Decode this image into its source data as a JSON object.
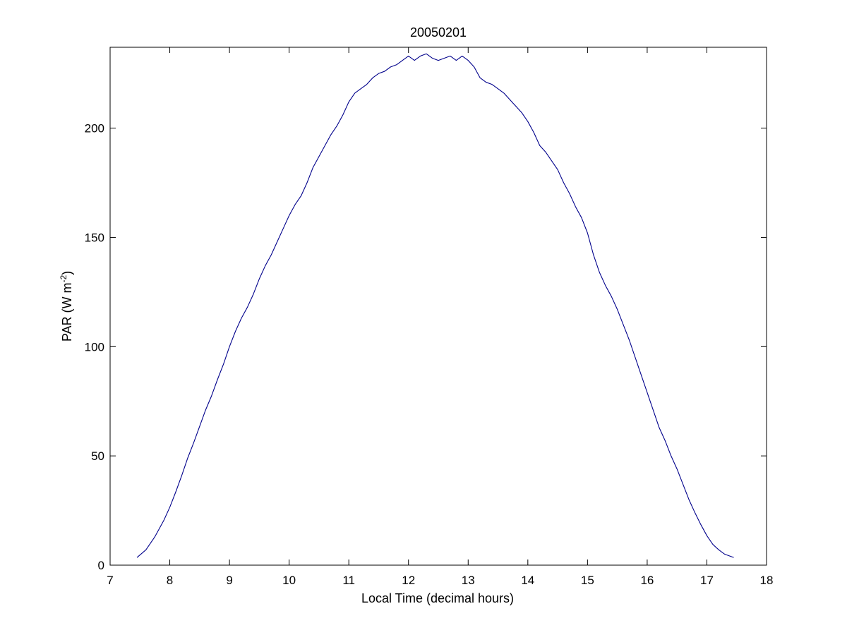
{
  "chart_data": {
    "type": "line",
    "title": "20050201",
    "xlabel": "Local Time (decimal hours)",
    "ylabel": {
      "prefix": "PAR (W m",
      "superscript": "-2",
      "suffix": ")"
    },
    "xlim": [
      7,
      18
    ],
    "ylim": [
      0,
      237
    ],
    "xticks": [
      "7",
      "8",
      "9",
      "10",
      "11",
      "12",
      "13",
      "14",
      "15",
      "16",
      "17",
      "18"
    ],
    "yticks": [
      "0",
      "50",
      "100",
      "150",
      "200"
    ],
    "grid": false,
    "legend": false,
    "series": [
      {
        "color": "#00008b",
        "points": [
          [
            7.45,
            3.5
          ],
          [
            7.6,
            7
          ],
          [
            7.75,
            13
          ],
          [
            7.9,
            20.5
          ],
          [
            8.0,
            26.5
          ],
          [
            8.1,
            33.5
          ],
          [
            8.2,
            41
          ],
          [
            8.3,
            49
          ],
          [
            8.4,
            56
          ],
          [
            8.5,
            63.5
          ],
          [
            8.6,
            71
          ],
          [
            8.7,
            77.5
          ],
          [
            8.8,
            85
          ],
          [
            8.9,
            92
          ],
          [
            9.0,
            100
          ],
          [
            9.1,
            107
          ],
          [
            9.2,
            113
          ],
          [
            9.3,
            118
          ],
          [
            9.4,
            124
          ],
          [
            9.5,
            131
          ],
          [
            9.6,
            137
          ],
          [
            9.7,
            142
          ],
          [
            9.8,
            148
          ],
          [
            9.9,
            154
          ],
          [
            10.0,
            160
          ],
          [
            10.1,
            165
          ],
          [
            10.2,
            169
          ],
          [
            10.3,
            175
          ],
          [
            10.4,
            182
          ],
          [
            10.5,
            187
          ],
          [
            10.6,
            192
          ],
          [
            10.7,
            197
          ],
          [
            10.8,
            201
          ],
          [
            10.9,
            206
          ],
          [
            11.0,
            212
          ],
          [
            11.1,
            216
          ],
          [
            11.2,
            218
          ],
          [
            11.3,
            220
          ],
          [
            11.4,
            223
          ],
          [
            11.5,
            225
          ],
          [
            11.6,
            226
          ],
          [
            11.7,
            228
          ],
          [
            11.8,
            229
          ],
          [
            11.9,
            231
          ],
          [
            12.0,
            233
          ],
          [
            12.1,
            231
          ],
          [
            12.2,
            233
          ],
          [
            12.3,
            234
          ],
          [
            12.4,
            232
          ],
          [
            12.5,
            231
          ],
          [
            12.6,
            232
          ],
          [
            12.7,
            233
          ],
          [
            12.8,
            231
          ],
          [
            12.9,
            233
          ],
          [
            13.0,
            231
          ],
          [
            13.1,
            228
          ],
          [
            13.2,
            223
          ],
          [
            13.3,
            221
          ],
          [
            13.4,
            220
          ],
          [
            13.5,
            218
          ],
          [
            13.6,
            216
          ],
          [
            13.7,
            213
          ],
          [
            13.8,
            210
          ],
          [
            13.9,
            207
          ],
          [
            14.0,
            203
          ],
          [
            14.1,
            198
          ],
          [
            14.2,
            192
          ],
          [
            14.3,
            189
          ],
          [
            14.4,
            185
          ],
          [
            14.5,
            181
          ],
          [
            14.6,
            175
          ],
          [
            14.7,
            170
          ],
          [
            14.8,
            164
          ],
          [
            14.9,
            159
          ],
          [
            15.0,
            152
          ],
          [
            15.1,
            142
          ],
          [
            15.2,
            134
          ],
          [
            15.3,
            128
          ],
          [
            15.4,
            123
          ],
          [
            15.5,
            117
          ],
          [
            15.6,
            110
          ],
          [
            15.7,
            103
          ],
          [
            15.8,
            95
          ],
          [
            15.9,
            87
          ],
          [
            16.0,
            79
          ],
          [
            16.1,
            71
          ],
          [
            16.2,
            63
          ],
          [
            16.3,
            57
          ],
          [
            16.4,
            50
          ],
          [
            16.5,
            44
          ],
          [
            16.6,
            37
          ],
          [
            16.7,
            30
          ],
          [
            16.8,
            24
          ],
          [
            16.9,
            18.5
          ],
          [
            17.0,
            13.5
          ],
          [
            17.1,
            9.5
          ],
          [
            17.2,
            7
          ],
          [
            17.3,
            5
          ],
          [
            17.45,
            3.5
          ]
        ]
      }
    ]
  }
}
